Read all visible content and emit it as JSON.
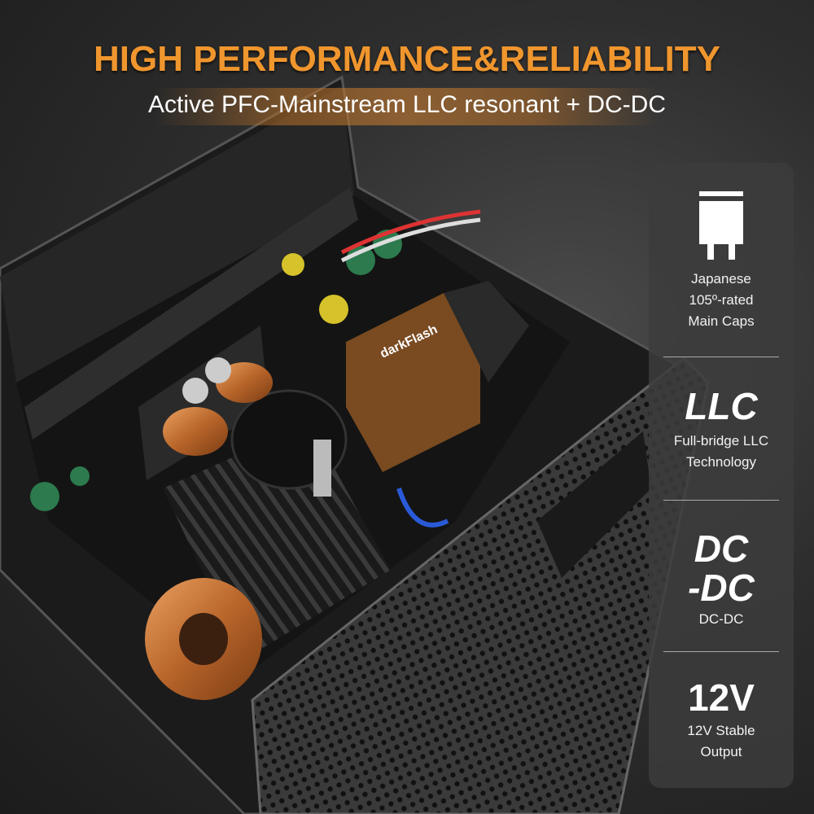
{
  "header": {
    "title": "HIGH PERFORMANCE&RELIABILITY",
    "subtitle": "Active PFC-Mainstream LLC resonant + DC-DC"
  },
  "features": [
    {
      "icon": "capacitor-icon",
      "lines": [
        "Japanese",
        "105º-rated",
        "Main Caps"
      ]
    },
    {
      "headline": "LLC",
      "lines": [
        "Full-bridge LLC",
        "Technology"
      ]
    },
    {
      "headline_lines": [
        "DC",
        "-DC"
      ],
      "lines": [
        "DC-DC"
      ]
    },
    {
      "headline": "12V",
      "lines": [
        "12V Stable",
        "Output"
      ]
    }
  ],
  "product": {
    "brand_label": "darkFlash"
  },
  "colors": {
    "accent": "#f0962e",
    "panel": "#3c3c3c",
    "copper": "#c7783a"
  }
}
